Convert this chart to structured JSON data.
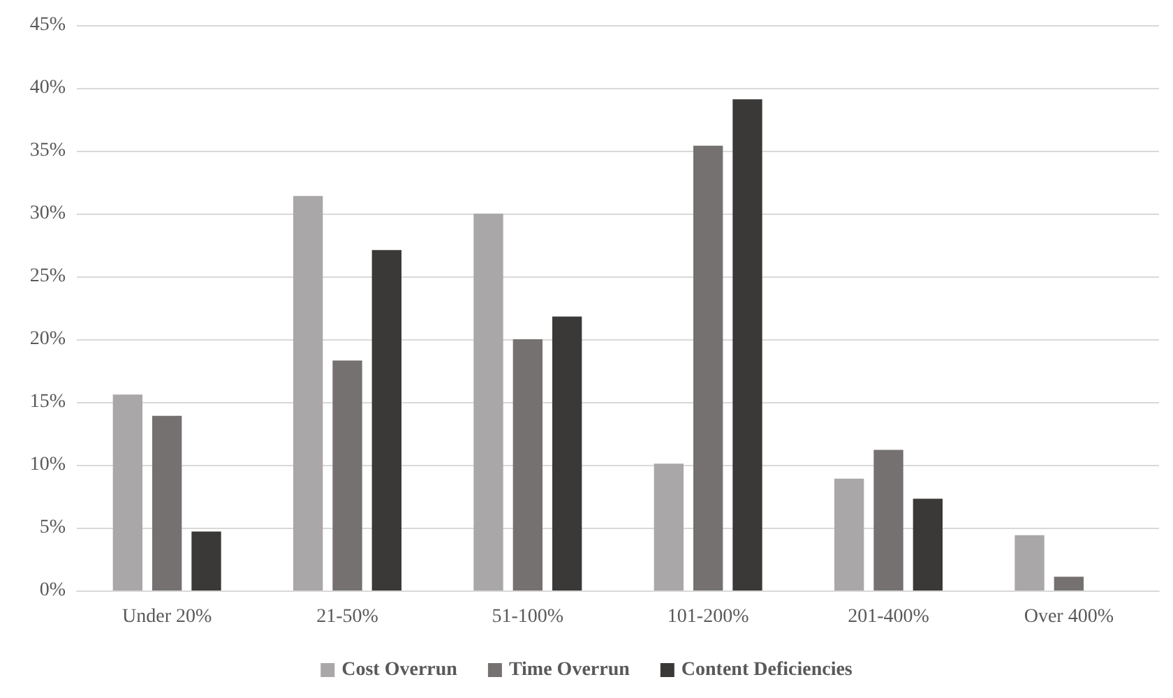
{
  "chart_data": {
    "type": "bar",
    "categories": [
      "Under 20%",
      "21-50%",
      "51-100%",
      "101-200%",
      "201-400%",
      "Over 400%"
    ],
    "series": [
      {
        "name": "Cost Overrun",
        "color": "#a9a7a7",
        "values": [
          15.6,
          31.4,
          30.0,
          10.1,
          8.9,
          4.4
        ]
      },
      {
        "name": "Time Overrun",
        "color": "#767171",
        "values": [
          13.9,
          18.3,
          20.0,
          35.4,
          11.2,
          1.1
        ]
      },
      {
        "name": "Content Deficiencies",
        "color": "#3b3838",
        "values": [
          4.7,
          27.1,
          21.8,
          39.1,
          7.3,
          0
        ]
      }
    ],
    "ylim": [
      0,
      45
    ],
    "yticks": [
      {
        "value": 0,
        "label": "0%"
      },
      {
        "value": 5,
        "label": "5%"
      },
      {
        "value": 10,
        "label": "10%"
      },
      {
        "value": 15,
        "label": "15%"
      },
      {
        "value": 20,
        "label": "20%"
      },
      {
        "value": 25,
        "label": "25%"
      },
      {
        "value": 30,
        "label": "30%"
      },
      {
        "value": 35,
        "label": "35%"
      },
      {
        "value": 40,
        "label": "40%"
      },
      {
        "value": 45,
        "label": "45%"
      }
    ],
    "grid": "y",
    "legend": "bottom"
  }
}
